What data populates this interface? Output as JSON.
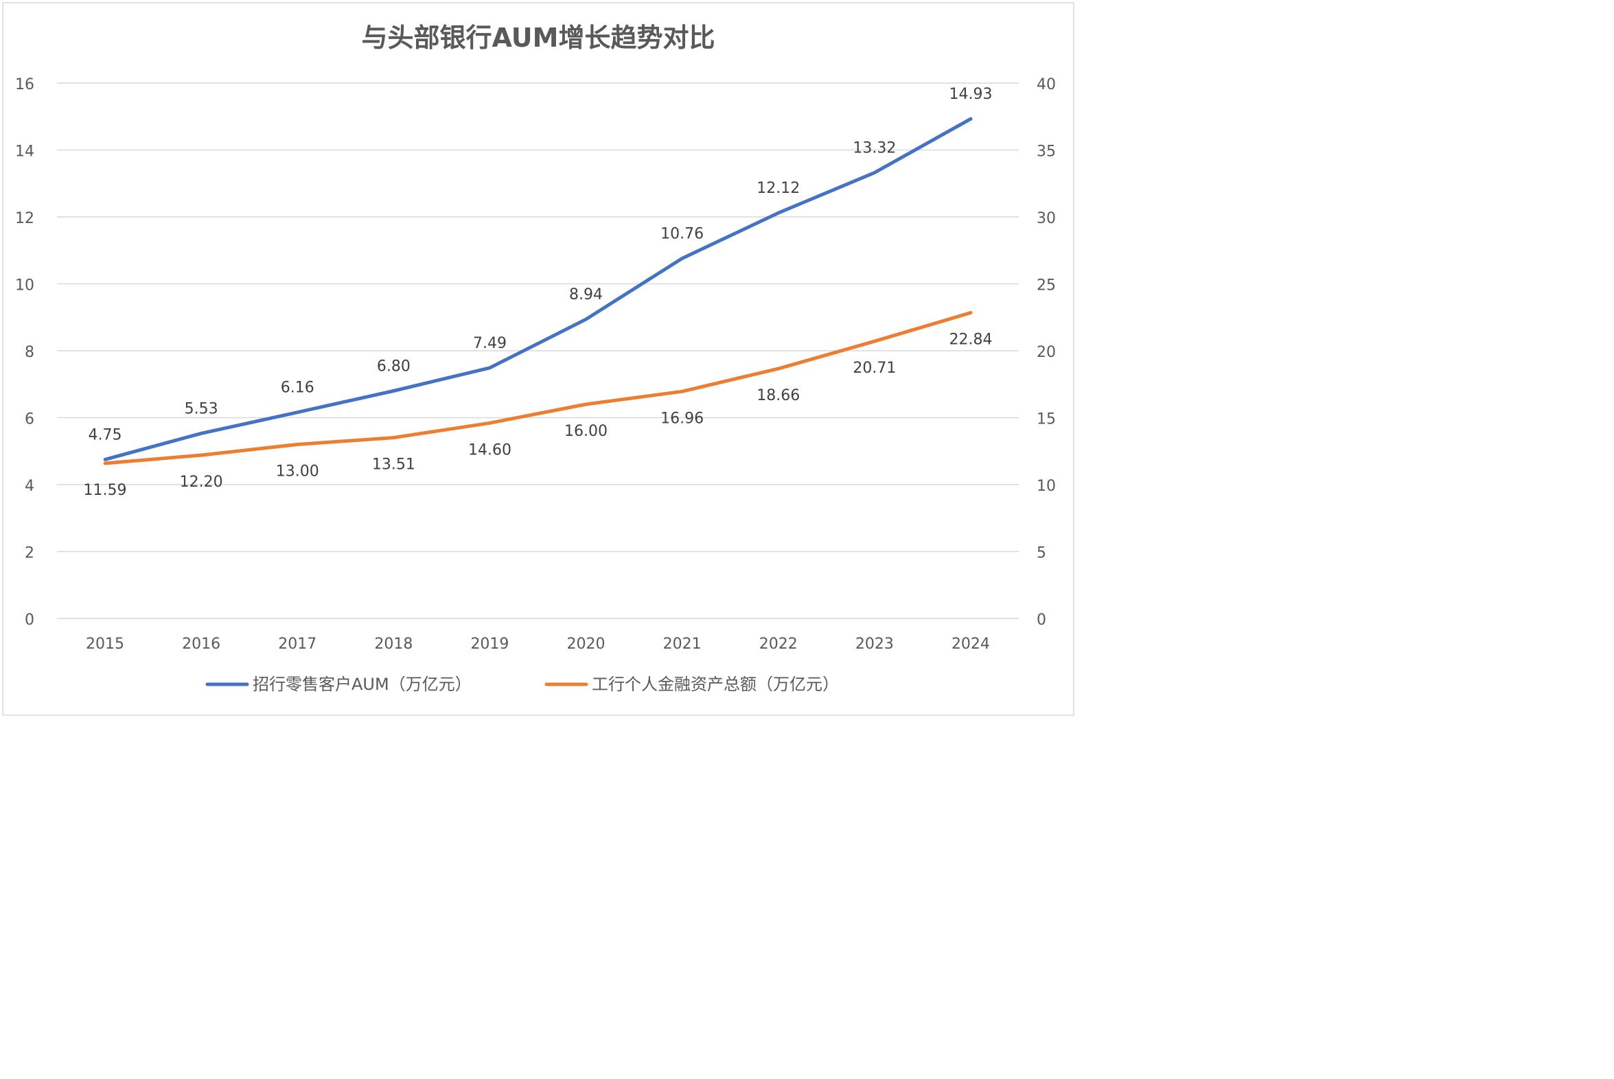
{
  "chart_data": {
    "type": "line",
    "title": "与头部银行AUM增长趋势对比",
    "categories": [
      "2015",
      "2016",
      "2017",
      "2018",
      "2019",
      "2020",
      "2021",
      "2022",
      "2023",
      "2024"
    ],
    "y_left": {
      "ylim": [
        0,
        16
      ],
      "ticks": [
        "0",
        "2",
        "4",
        "6",
        "8",
        "10",
        "12",
        "14",
        "16"
      ]
    },
    "y_right": {
      "ylim": [
        0,
        40
      ],
      "ticks": [
        "0",
        "5",
        "10",
        "15",
        "20",
        "25",
        "30",
        "35",
        "40"
      ]
    },
    "series": [
      {
        "name": "招行零售客户AUM（万亿元）",
        "axis": "left",
        "color": "#4472C4",
        "values": [
          4.75,
          5.53,
          6.16,
          6.8,
          7.49,
          8.94,
          10.76,
          12.12,
          13.32,
          14.93
        ],
        "labels": [
          "4.75",
          "5.53",
          "6.16",
          "6.80",
          "7.49",
          "8.94",
          "10.76",
          "12.12",
          "13.32",
          "14.93"
        ]
      },
      {
        "name": "工行个人金融资产总额（万亿元）",
        "axis": "right",
        "color": "#ED7D31",
        "values": [
          11.59,
          12.2,
          13.0,
          13.51,
          14.6,
          16.0,
          16.96,
          18.66,
          20.71,
          22.84
        ],
        "labels": [
          "11.59",
          "12.20",
          "13.00",
          "13.51",
          "14.60",
          "16.00",
          "16.96",
          "18.66",
          "20.71",
          "22.84"
        ]
      }
    ],
    "grid": true,
    "legend": "bottom"
  }
}
